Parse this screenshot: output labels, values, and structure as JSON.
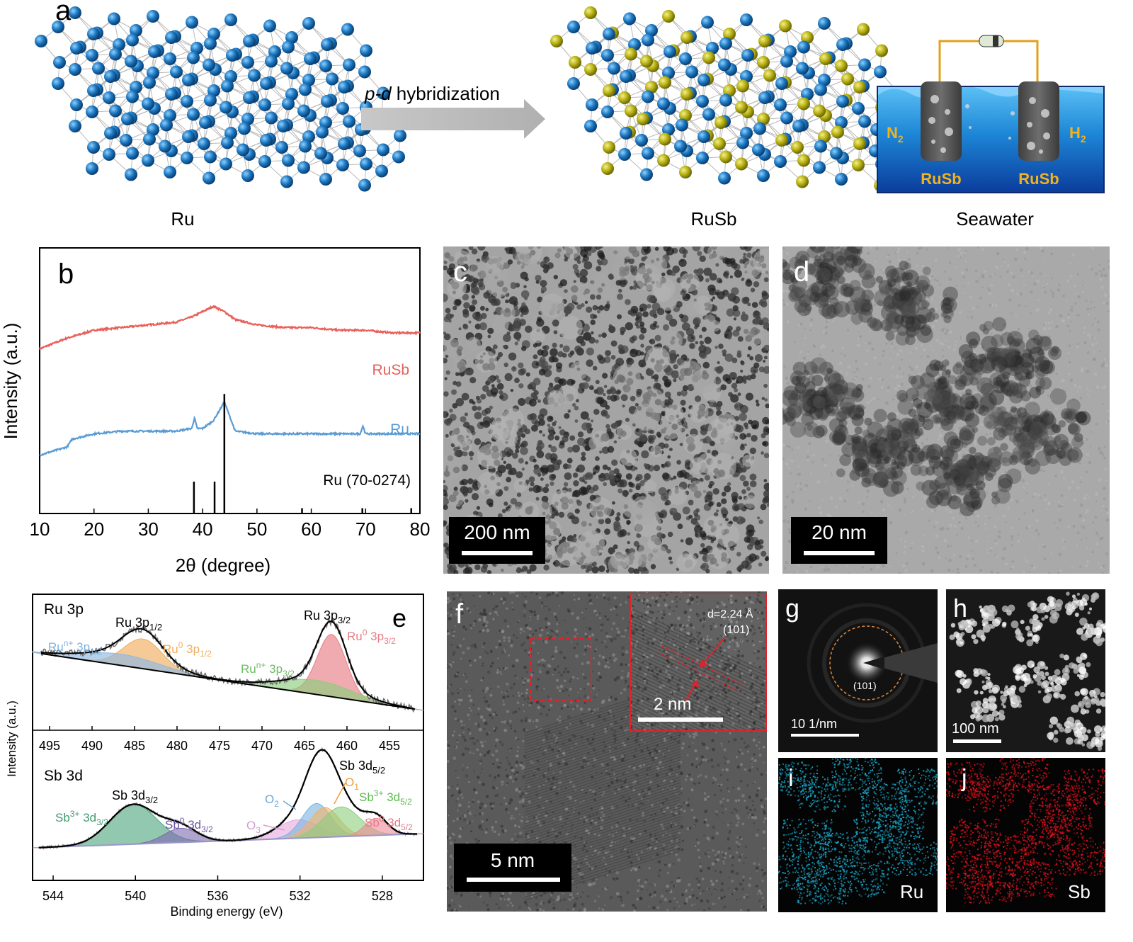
{
  "panel_a": {
    "letter": "a",
    "ru_label": "Ru",
    "arrow_label_italic": "p-d",
    "arrow_label_rest": " hybridization",
    "rusb_label": "RuSb",
    "seawater_label": "Seawater",
    "cell": {
      "left_gas": "N",
      "left_gas_sub": "2",
      "right_gas": "H",
      "right_gas_sub": "2",
      "left_electrode": "RuSb",
      "right_electrode": "RuSb"
    },
    "colors": {
      "ru_atom": "#1f78c1",
      "sb_atom": "#b8b214",
      "water": "#1565c0",
      "wire": "#e0a11b"
    }
  },
  "chart_data": [
    {
      "type": "line",
      "panel_letter": "b",
      "xlabel": "2θ (degree)",
      "ylabel": "Intensity (a.u.)",
      "xlim": [
        10,
        80
      ],
      "xticks": [
        "10",
        "20",
        "30",
        "40",
        "50",
        "60",
        "70",
        "80"
      ],
      "series": [
        {
          "name": "RuSb",
          "color": "#e8605a",
          "x": [
            10,
            15,
            20,
            25,
            30,
            35,
            38,
            40,
            42,
            44,
            46,
            50,
            55,
            60,
            65,
            70,
            75,
            80
          ],
          "y": [
            0.62,
            0.66,
            0.69,
            0.7,
            0.71,
            0.72,
            0.74,
            0.76,
            0.78,
            0.76,
            0.73,
            0.71,
            0.7,
            0.7,
            0.69,
            0.69,
            0.68,
            0.68
          ]
        },
        {
          "name": "Ru",
          "color": "#5a9bd4",
          "x": [
            10,
            15,
            16,
            20,
            25,
            30,
            35,
            38,
            38.5,
            39,
            40,
            42,
            44,
            46,
            50,
            55,
            60,
            65,
            69,
            69.5,
            70,
            75,
            80
          ],
          "y": [
            0.22,
            0.25,
            0.28,
            0.3,
            0.31,
            0.31,
            0.31,
            0.32,
            0.36,
            0.32,
            0.32,
            0.35,
            0.42,
            0.31,
            0.3,
            0.3,
            0.3,
            0.3,
            0.3,
            0.33,
            0.3,
            0.3,
            0.3
          ]
        }
      ],
      "reference": {
        "name": "Ru (70-0274)",
        "peaks_x": [
          38.4,
          42.2,
          44.0,
          58.3,
          69.4,
          78.4
        ],
        "peaks_h": [
          0.12,
          0.12,
          0.45,
          0.02,
          0.02,
          0.02
        ]
      }
    },
    {
      "type": "line",
      "panel_letter": "e",
      "top_panel": {
        "label": "Ru 3p",
        "xlim": [
          497,
          451
        ],
        "xticks": [
          "495",
          "490",
          "485",
          "480",
          "475",
          "470",
          "465",
          "460",
          "455"
        ],
        "peaks": [
          {
            "name": "Ru⁰ 3p₃/₂",
            "center": 461.8,
            "color": "#e77e86"
          },
          {
            "name": "Ruⁿ⁺ 3p₃/₂",
            "center": 463.0,
            "color": "#7fc67a"
          },
          {
            "name": "Ru⁰ 3p₁/₂",
            "center": 484.0,
            "color": "#f0ae5f"
          },
          {
            "name": "Ruⁿ⁺ 3p₁/₂",
            "center": 486.0,
            "color": "#8db9e2"
          }
        ]
      },
      "bottom_panel": {
        "label": "Sb 3d",
        "xlim": [
          545,
          526
        ],
        "xticks": [
          "544",
          "540",
          "536",
          "532",
          "528"
        ],
        "peaks": [
          {
            "name": "Sb³⁺ 3d₃/₂",
            "center": 540.0,
            "color": "#4aa37a"
          },
          {
            "name": "Sb⁰ 3d₃/₂",
            "center": 537.8,
            "color": "#7d68b0"
          },
          {
            "name": "O₃",
            "center": 531.9,
            "color": "#e6a7dd"
          },
          {
            "name": "O₂",
            "center": 530.9,
            "color": "#78b4e0"
          },
          {
            "name": "O₁",
            "center": 530.6,
            "color": "#f2b36a"
          },
          {
            "name": "Sb³⁺ 3d₅/₂",
            "center": 530.1,
            "color": "#8ccd7c"
          },
          {
            "name": "Sb⁰ 3d₅/₂",
            "center": 528.3,
            "color": "#ec8a96"
          }
        ]
      },
      "ylabel": "Intensity (a.u.)",
      "xlabel": "Binding energy (eV)"
    }
  ],
  "labels_b": {
    "rusb": "RuSb",
    "ru": "Ru",
    "ref": "Ru (70-0274)"
  },
  "labels_e": {
    "ru3p12_main": "Ru 3p",
    "ru3p12_sub": "1/2",
    "ru3p32_main": "Ru 3p",
    "ru3p32_sub": "3/2",
    "run_3p12_a": "Ru",
    "run_3p12_sup": "n+",
    "run_3p12_b": " 3p",
    "run_3p12_sub": "1/2",
    "ru0_3p12_a": "Ru",
    "ru0_3p12_sup": "0",
    "ru0_3p12_b": " 3p",
    "ru0_3p12_sub": "1/2",
    "run_3p32_a": "Ru",
    "run_3p32_sup": "n+",
    "run_3p32_b": " 3p",
    "run_3p32_sub": "3/2",
    "ru0_3p32_a": "Ru",
    "ru0_3p32_sup": "0",
    "ru0_3p32_b": " 3p",
    "ru0_3p32_sub": "3/2",
    "sb3d52_main": "Sb 3d",
    "sb3d52_sub": "5/2",
    "sb3d32_main": "Sb 3d",
    "sb3d32_sub": "3/2",
    "sb3p_32_a": "Sb",
    "sb3p_32_sup": "3+",
    "sb3p_32_b": " 3d",
    "sb3p_32_sub": "3/2",
    "sb0_32_a": "Sb",
    "sb0_32_sup": "0",
    "sb0_32_b": " 3d",
    "sb0_32_sub": "3/2",
    "o3_a": "O",
    "o3_sub": "3",
    "o2_a": "O",
    "o2_sub": "2",
    "o1_a": "O",
    "o1_sub": "1",
    "sb3p_52_a": "Sb",
    "sb3p_52_sup": "3+",
    "sb3p_52_b": " 3d",
    "sb3p_52_sub": "5/2",
    "sb0_52_a": "Sb",
    "sb0_52_sup": "0",
    "sb0_52_b": " 3d",
    "sb0_52_sub": "5/2"
  },
  "micrographs": {
    "c": {
      "letter": "c",
      "scale": "200 nm"
    },
    "d": {
      "letter": "d",
      "scale": "20 nm"
    },
    "f": {
      "letter": "f",
      "scale": "5 nm",
      "inset_scale": "2 nm",
      "d_spacing": "d=2.24 Å",
      "plane": "(101)"
    },
    "g": {
      "letter": "g",
      "scale": "10 1/nm",
      "ring_label": "(101)"
    },
    "h": {
      "letter": "h",
      "scale": "100 nm"
    },
    "i": {
      "letter": "i",
      "element": "Ru"
    },
    "j": {
      "letter": "j",
      "element": "Sb"
    }
  }
}
